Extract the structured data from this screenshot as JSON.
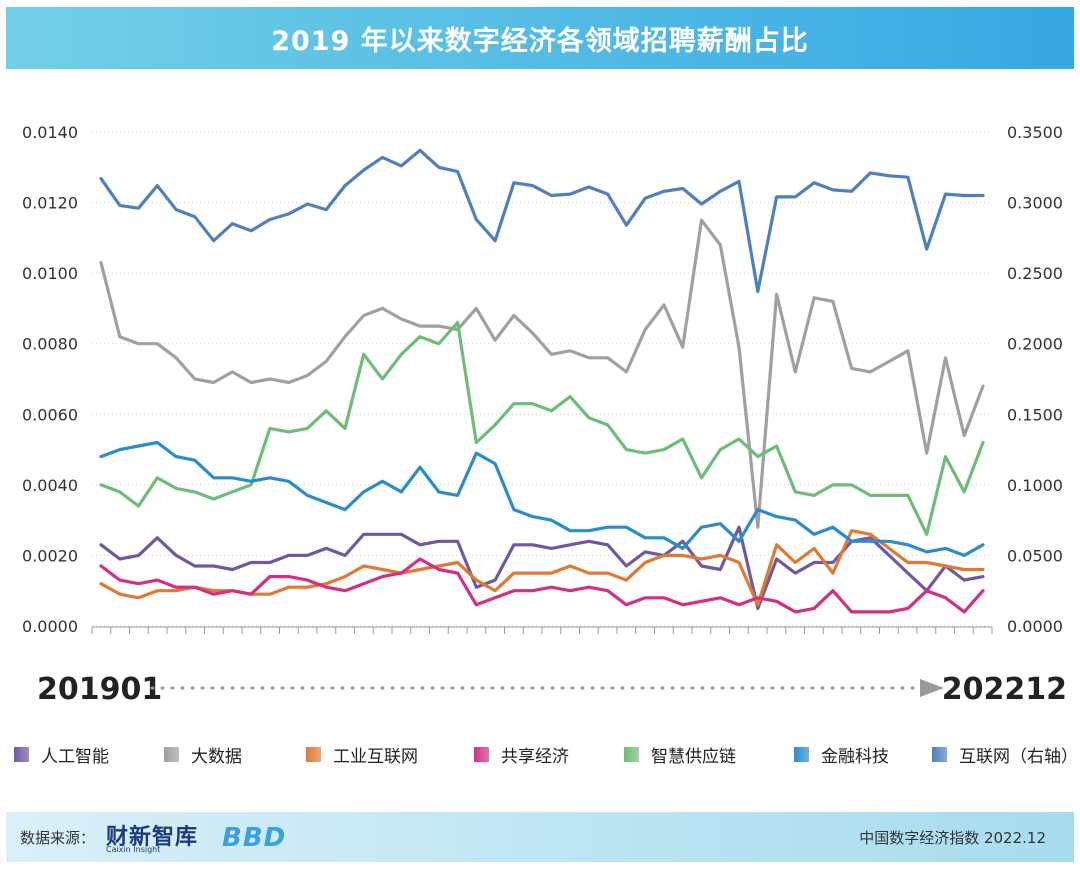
{
  "chart_data": {
    "type": "line",
    "title": "2019 年以来数字经济各领域招聘薪酬占比",
    "x_start": "201901",
    "x_end": "202212",
    "n_points": 48,
    "y_left": {
      "ylim": [
        0,
        0.014
      ],
      "ticks": [
        "0.0000",
        "0.0020",
        "0.0040",
        "0.0060",
        "0.0080",
        "0.0100",
        "0.0120",
        "0.0140"
      ]
    },
    "y_right": {
      "ylim": [
        0,
        0.35
      ],
      "ticks": [
        "0.0000",
        "0.0500",
        "0.1000",
        "0.1500",
        "0.2000",
        "0.2500",
        "0.3000",
        "0.3500"
      ]
    },
    "series": [
      {
        "name": "人工智能",
        "axis": "left",
        "color": "#6f58a3",
        "values": [
          0.0023,
          0.0019,
          0.002,
          0.0025,
          0.002,
          0.0017,
          0.0017,
          0.0016,
          0.0018,
          0.0018,
          0.002,
          0.002,
          0.0022,
          0.002,
          0.0026,
          0.0026,
          0.0026,
          0.0023,
          0.0024,
          0.0024,
          0.0011,
          0.0013,
          0.0023,
          0.0023,
          0.0022,
          0.0023,
          0.0024,
          0.0023,
          0.0017,
          0.0021,
          0.002,
          0.0024,
          0.0017,
          0.0016,
          0.0028,
          0.0005,
          0.0019,
          0.0015,
          0.0018,
          0.0018,
          0.0024,
          0.0025,
          0.002,
          0.0015,
          0.001,
          0.0017,
          0.0013,
          0.0014
        ]
      },
      {
        "name": "大数据",
        "axis": "left",
        "color": "#a0a0a0",
        "values": [
          0.0103,
          0.0082,
          0.008,
          0.008,
          0.0076,
          0.007,
          0.0069,
          0.0072,
          0.0069,
          0.007,
          0.0069,
          0.0071,
          0.0075,
          0.0082,
          0.0088,
          0.009,
          0.0087,
          0.0085,
          0.0085,
          0.0084,
          0.009,
          0.0081,
          0.0088,
          0.0083,
          0.0077,
          0.0078,
          0.0076,
          0.0076,
          0.0072,
          0.0084,
          0.0091,
          0.0079,
          0.0115,
          0.0108,
          0.0079,
          0.0028,
          0.0094,
          0.0072,
          0.0093,
          0.0092,
          0.0073,
          0.0072,
          0.0075,
          0.0078,
          0.0049,
          0.0076,
          0.0054,
          0.0068
        ]
      },
      {
        "name": "工业互联网",
        "axis": "left",
        "color": "#e07a32",
        "values": [
          0.0012,
          0.0009,
          0.0008,
          0.001,
          0.001,
          0.0011,
          0.001,
          0.001,
          0.0009,
          0.0009,
          0.0011,
          0.0011,
          0.0012,
          0.0014,
          0.0017,
          0.0016,
          0.0015,
          0.0016,
          0.0017,
          0.0018,
          0.0013,
          0.001,
          0.0015,
          0.0015,
          0.0015,
          0.0017,
          0.0015,
          0.0015,
          0.0013,
          0.0018,
          0.002,
          0.002,
          0.0019,
          0.002,
          0.0018,
          0.0006,
          0.0023,
          0.0018,
          0.0022,
          0.0015,
          0.0027,
          0.0026,
          0.0022,
          0.0018,
          0.0018,
          0.0017,
          0.0016,
          0.0016
        ]
      },
      {
        "name": "共享经济",
        "axis": "left",
        "color": "#d42f83",
        "values": [
          0.0017,
          0.0013,
          0.0012,
          0.0013,
          0.0011,
          0.0011,
          0.0009,
          0.001,
          0.0009,
          0.0014,
          0.0014,
          0.0013,
          0.0011,
          0.001,
          0.0012,
          0.0014,
          0.0015,
          0.0019,
          0.0016,
          0.0015,
          0.0006,
          0.0008,
          0.001,
          0.001,
          0.0011,
          0.001,
          0.0011,
          0.001,
          0.0006,
          0.0008,
          0.0008,
          0.0006,
          0.0007,
          0.0008,
          0.0006,
          0.0008,
          0.0007,
          0.0004,
          0.0005,
          0.001,
          0.0004,
          0.0004,
          0.0004,
          0.0005,
          0.001,
          0.0008,
          0.0004,
          0.001
        ]
      },
      {
        "name": "智慧供应链",
        "axis": "left",
        "color": "#6dbd76",
        "values": [
          0.004,
          0.0038,
          0.0034,
          0.0042,
          0.0039,
          0.0038,
          0.0036,
          0.0038,
          0.004,
          0.0056,
          0.0055,
          0.0056,
          0.0061,
          0.0056,
          0.0077,
          0.007,
          0.0077,
          0.0082,
          0.008,
          0.0086,
          0.0052,
          0.0057,
          0.0063,
          0.0063,
          0.0061,
          0.0065,
          0.0059,
          0.0057,
          0.005,
          0.0049,
          0.005,
          0.0053,
          0.0042,
          0.005,
          0.0053,
          0.0048,
          0.0051,
          0.0038,
          0.0037,
          0.004,
          0.004,
          0.0037,
          0.0037,
          0.0037,
          0.0026,
          0.0048,
          0.0038,
          0.0052
        ]
      },
      {
        "name": "金融科技",
        "axis": "left",
        "color": "#2a8ccc",
        "values": [
          0.0048,
          0.005,
          0.0051,
          0.0052,
          0.0048,
          0.0047,
          0.0042,
          0.0042,
          0.0041,
          0.0042,
          0.0041,
          0.0037,
          0.0035,
          0.0033,
          0.0038,
          0.0041,
          0.0038,
          0.0045,
          0.0038,
          0.0037,
          0.0049,
          0.0046,
          0.0033,
          0.0031,
          0.003,
          0.0027,
          0.0027,
          0.0028,
          0.0028,
          0.0025,
          0.0025,
          0.0022,
          0.0028,
          0.0029,
          0.0024,
          0.0033,
          0.0031,
          0.003,
          0.0026,
          0.0028,
          0.0024,
          0.0024,
          0.0024,
          0.0023,
          0.0021,
          0.0022,
          0.002,
          0.0023
        ]
      },
      {
        "name": "互联网（右轴）",
        "axis": "right",
        "color": "#4e7fbf",
        "values": [
          0.317,
          0.298,
          0.296,
          0.312,
          0.295,
          0.29,
          0.273,
          0.285,
          0.28,
          0.288,
          0.292,
          0.299,
          0.295,
          0.312,
          0.323,
          0.332,
          0.326,
          0.337,
          0.325,
          0.322,
          0.288,
          0.273,
          0.314,
          0.312,
          0.305,
          0.306,
          0.311,
          0.306,
          0.284,
          0.303,
          0.308,
          0.31,
          0.299,
          0.308,
          0.315,
          0.237,
          0.304,
          0.304,
          0.314,
          0.309,
          0.308,
          0.321,
          0.319,
          0.318,
          0.267,
          0.306,
          0.305,
          0.305
        ]
      }
    ]
  },
  "footer": {
    "source_label": "数据来源：",
    "logo_cn": "财新智库",
    "logo_en": "Caixin Insight",
    "logo_mark": "BBD",
    "right_text": "中国数字经济指数 2022.12"
  }
}
